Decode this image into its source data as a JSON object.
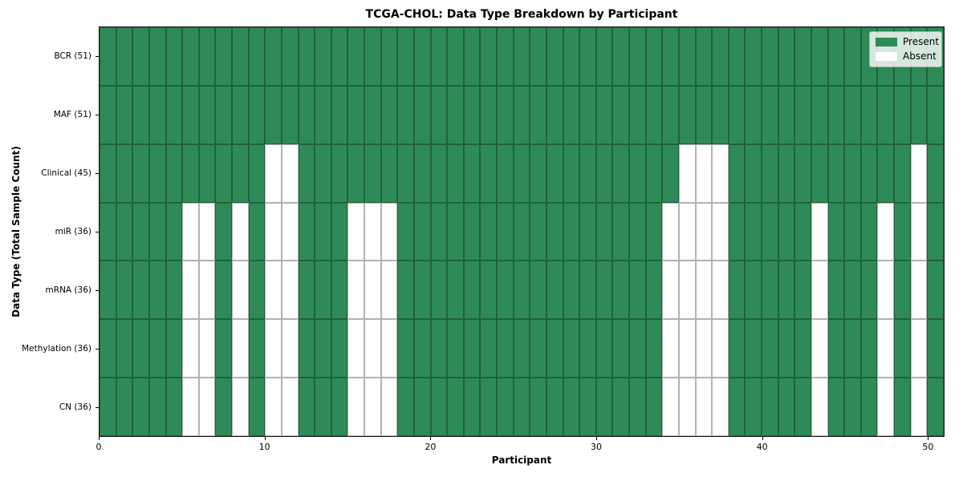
{
  "figure": {
    "background": "#ffffff"
  },
  "chart_data": {
    "type": "heatmap",
    "title": "TCGA-CHOL: Data Type Breakdown by Participant",
    "xlabel": "Participant",
    "ylabel": "Data Type (Total Sample Count)",
    "n_participants": 51,
    "x_range": [
      0,
      51
    ],
    "x_ticks": [
      0,
      10,
      20,
      30,
      40,
      50
    ],
    "grid": true,
    "colors": {
      "present": "#2E8B57",
      "absent": "#FFFFFF",
      "cell_edge": "rgba(0,0,0,0.30)",
      "spine": "#1a1a1a"
    },
    "rows": [
      {
        "label": "BCR (51)",
        "total": 51,
        "absent_participants": []
      },
      {
        "label": "MAF (51)",
        "total": 51,
        "absent_participants": []
      },
      {
        "label": "Clinical (45)",
        "total": 45,
        "absent_participants": [
          10,
          11,
          35,
          36,
          37,
          49
        ]
      },
      {
        "label": "miR (36)",
        "total": 36,
        "absent_participants": [
          5,
          6,
          8,
          10,
          11,
          15,
          16,
          17,
          34,
          35,
          36,
          37,
          43,
          47,
          49
        ]
      },
      {
        "label": "mRNA (36)",
        "total": 36,
        "absent_participants": [
          5,
          6,
          8,
          10,
          11,
          15,
          16,
          17,
          34,
          35,
          36,
          37,
          43,
          47,
          49
        ]
      },
      {
        "label": "Methylation (36)",
        "total": 36,
        "absent_participants": [
          5,
          6,
          8,
          10,
          11,
          15,
          16,
          17,
          34,
          35,
          36,
          37,
          43,
          47,
          49
        ]
      },
      {
        "label": "CN (36)",
        "total": 36,
        "absent_participants": [
          5,
          6,
          8,
          10,
          11,
          15,
          16,
          17,
          34,
          35,
          36,
          37,
          43,
          47,
          49
        ]
      }
    ],
    "legend": [
      {
        "label": "Present",
        "color": "#2E8B57"
      },
      {
        "label": "Absent",
        "color": "#FFFFFF"
      }
    ],
    "legend_position": "upper right"
  }
}
